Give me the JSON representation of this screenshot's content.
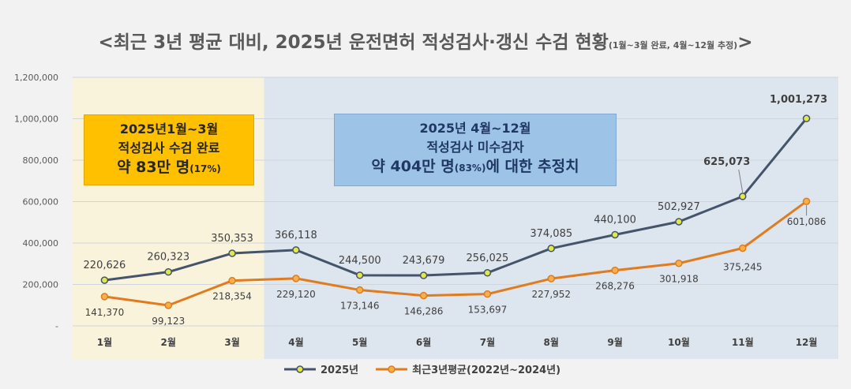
{
  "title": {
    "main": "<최근 3년 평균 대비, 2025년 운전면허 적성검사·갱신 수검 현황",
    "sub": "(1월~3월 완료, 4월~12월 추정)",
    "end": ">"
  },
  "box_completed": {
    "line1": "2025년1월~3월",
    "line2": "적성검사 수검 완료",
    "line3": "약 83만 명",
    "line3_small": "(17%)"
  },
  "box_estimate": {
    "line1": "2025년 4월~12월",
    "line2": "적성검사 미수검자",
    "line3a": "약 404만 명",
    "line3_small": "(83%)",
    "line3b": "에 대한 추정치"
  },
  "colors": {
    "series_2025": "#44546a",
    "series_avg": "#e07b1f",
    "marker_fill": "#e2e84a",
    "band_completed": "#faf3dc",
    "band_estimate": "#dde5ef"
  },
  "chart_data": {
    "type": "line",
    "categories": [
      "1월",
      "2월",
      "3월",
      "4월",
      "5월",
      "6월",
      "7월",
      "8월",
      "9월",
      "10월",
      "11월",
      "12월"
    ],
    "ylim": [
      0,
      1200000
    ],
    "yticks": [
      0,
      200000,
      400000,
      600000,
      800000,
      1000000,
      1200000
    ],
    "ytick_labels": [
      "-",
      "200,000",
      "400,000",
      "600,000",
      "800,000",
      "1,000,000",
      "1,200,000"
    ],
    "grid": true,
    "legend_position": "bottom",
    "series": [
      {
        "name": "2025년",
        "values": [
          220626,
          260323,
          350353,
          366118,
          244500,
          243679,
          256025,
          374085,
          440100,
          502927,
          625073,
          1001273
        ],
        "labels": [
          "220,626",
          "260,323",
          "350,353",
          "366,118",
          "244,500",
          "243,679",
          "256,025",
          "374,085",
          "440,100",
          "502,927",
          "625,073",
          "1,001,273"
        ]
      },
      {
        "name": "최근3년평균(2022년~2024년)",
        "values": [
          141370,
          99123,
          218354,
          229120,
          173146,
          146286,
          153697,
          227952,
          268276,
          301918,
          375245,
          601086
        ],
        "labels": [
          "141,370",
          "99,123",
          "218,354",
          "229,120",
          "173,146",
          "146,286",
          "153,697",
          "227,952",
          "268,276",
          "301,918",
          "375,245",
          "601,086"
        ]
      }
    ]
  }
}
